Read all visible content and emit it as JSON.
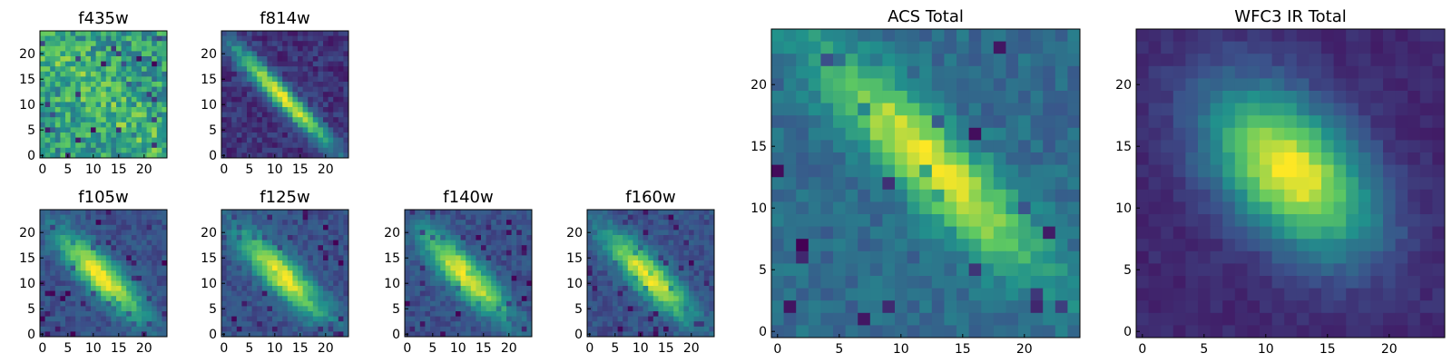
{
  "figure": {
    "colormap": "viridis",
    "colormap_stops": [
      "#440154",
      "#3b528b",
      "#21918c",
      "#5ec962",
      "#fde725"
    ],
    "grid_size": 25
  },
  "chart_data": [
    {
      "type": "heatmap",
      "id": "f435w",
      "title": "f435w",
      "xticks": [
        "0",
        "5",
        "10",
        "15",
        "20"
      ],
      "yticks": [
        "0",
        "5",
        "10",
        "15",
        "20"
      ],
      "pattern": "noise"
    },
    {
      "type": "heatmap",
      "id": "f814w",
      "title": "f814w",
      "xticks": [
        "0",
        "5",
        "10",
        "15",
        "20"
      ],
      "yticks": [
        "0",
        "5",
        "10",
        "15",
        "20"
      ],
      "pattern": "diagonal"
    },
    {
      "type": "heatmap",
      "id": "f105w",
      "title": "f105w",
      "xticks": [
        "0",
        "5",
        "10",
        "15",
        "20"
      ],
      "yticks": [
        "0",
        "5",
        "10",
        "15",
        "20"
      ],
      "pattern": "diagonal-ir"
    },
    {
      "type": "heatmap",
      "id": "f125w",
      "title": "f125w",
      "xticks": [
        "0",
        "5",
        "10",
        "15",
        "20"
      ],
      "yticks": [
        "0",
        "5",
        "10",
        "15",
        "20"
      ],
      "pattern": "diagonal-ir"
    },
    {
      "type": "heatmap",
      "id": "f140w",
      "title": "f140w",
      "xticks": [
        "0",
        "5",
        "10",
        "15",
        "20"
      ],
      "yticks": [
        "0",
        "5",
        "10",
        "15",
        "20"
      ],
      "pattern": "diagonal-ir"
    },
    {
      "type": "heatmap",
      "id": "f160w",
      "title": "f160w",
      "xticks": [
        "0",
        "5",
        "10",
        "15",
        "20"
      ],
      "yticks": [
        "0",
        "5",
        "10",
        "15",
        "20"
      ],
      "pattern": "diagonal-ir"
    },
    {
      "type": "heatmap",
      "id": "acs-total",
      "title": "ACS Total",
      "xticks": [
        "0",
        "5",
        "10",
        "15",
        "20"
      ],
      "yticks": [
        "0",
        "5",
        "10",
        "15",
        "20"
      ],
      "pattern": "acs"
    },
    {
      "type": "heatmap",
      "id": "wfc3-ir-total",
      "title": "WFC3 IR Total",
      "xticks": [
        "0",
        "5",
        "10",
        "15",
        "20"
      ],
      "yticks": [
        "0",
        "5",
        "10",
        "15",
        "20"
      ],
      "pattern": "ir"
    }
  ]
}
